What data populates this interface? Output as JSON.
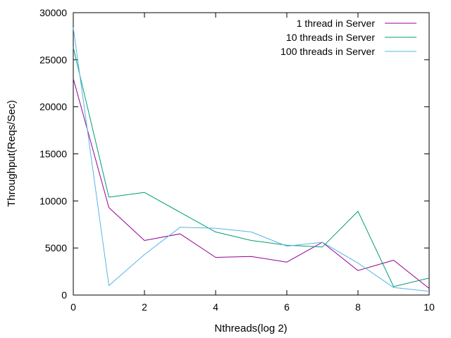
{
  "chart_data": {
    "type": "line",
    "xlabel": "Nthreads(log 2)",
    "ylabel": "Throughput(Reqs/Sec)",
    "xlim": [
      0,
      10
    ],
    "ylim": [
      0,
      30000
    ],
    "xticks": [
      0,
      2,
      4,
      6,
      8,
      10
    ],
    "yticks": [
      0,
      5000,
      10000,
      15000,
      20000,
      25000,
      30000
    ],
    "grid": false,
    "legend_position": "top-right",
    "x": [
      0,
      1,
      2,
      3,
      4,
      5,
      6,
      7,
      8,
      9,
      10
    ],
    "series": [
      {
        "name": "1 thread in Server",
        "color": "#940094",
        "values": [
          23000,
          9300,
          5800,
          6500,
          4000,
          4100,
          3500,
          5600,
          2600,
          3700,
          700
        ]
      },
      {
        "name": "10 threads in Server",
        "color": "#009e73",
        "values": [
          26300,
          10400,
          10900,
          8800,
          6700,
          5800,
          5300,
          5100,
          8900,
          900,
          1800
        ]
      },
      {
        "name": "100 threads in Server",
        "color": "#56b4e9",
        "values": [
          28400,
          1000,
          4300,
          7200,
          7100,
          6700,
          5200,
          5600,
          3400,
          800,
          400
        ]
      }
    ]
  }
}
